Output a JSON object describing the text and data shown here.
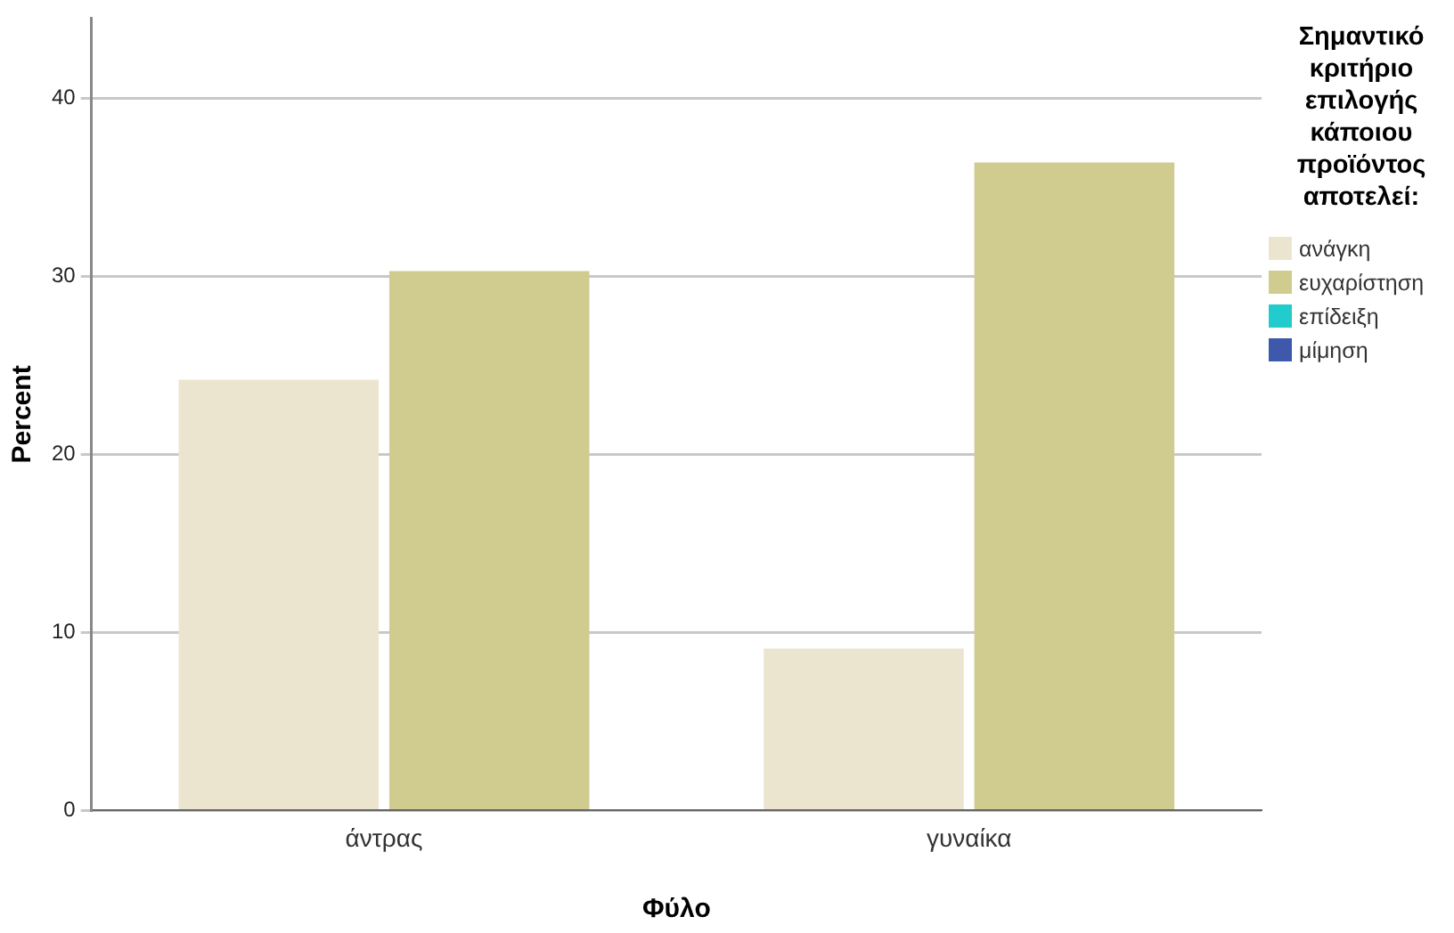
{
  "chart_data": {
    "type": "bar",
    "xlabel": "Φύλο",
    "ylabel": "Percent",
    "legend_title": "Σημαντικό κριτήριο επιλογής κάποιου προϊόντος αποτελεί:",
    "categories": [
      "άντρας",
      "γυναίκα"
    ],
    "series": [
      {
        "name": "ανάγκη",
        "color": "#ebe5d0",
        "values": [
          24.2,
          9.1
        ]
      },
      {
        "name": "ευχαρίστηση",
        "color": "#d0cb8e",
        "values": [
          30.3,
          36.4
        ]
      },
      {
        "name": "επίδειξη",
        "color": "#22cccc",
        "values": [
          null,
          null
        ]
      },
      {
        "name": "μίμηση",
        "color": "#3e58ac",
        "values": [
          null,
          null
        ]
      }
    ],
    "ylim": [
      0,
      44.5
    ],
    "yticks": [
      0,
      10,
      20,
      30,
      40
    ],
    "grid": "y",
    "legend": "right"
  }
}
